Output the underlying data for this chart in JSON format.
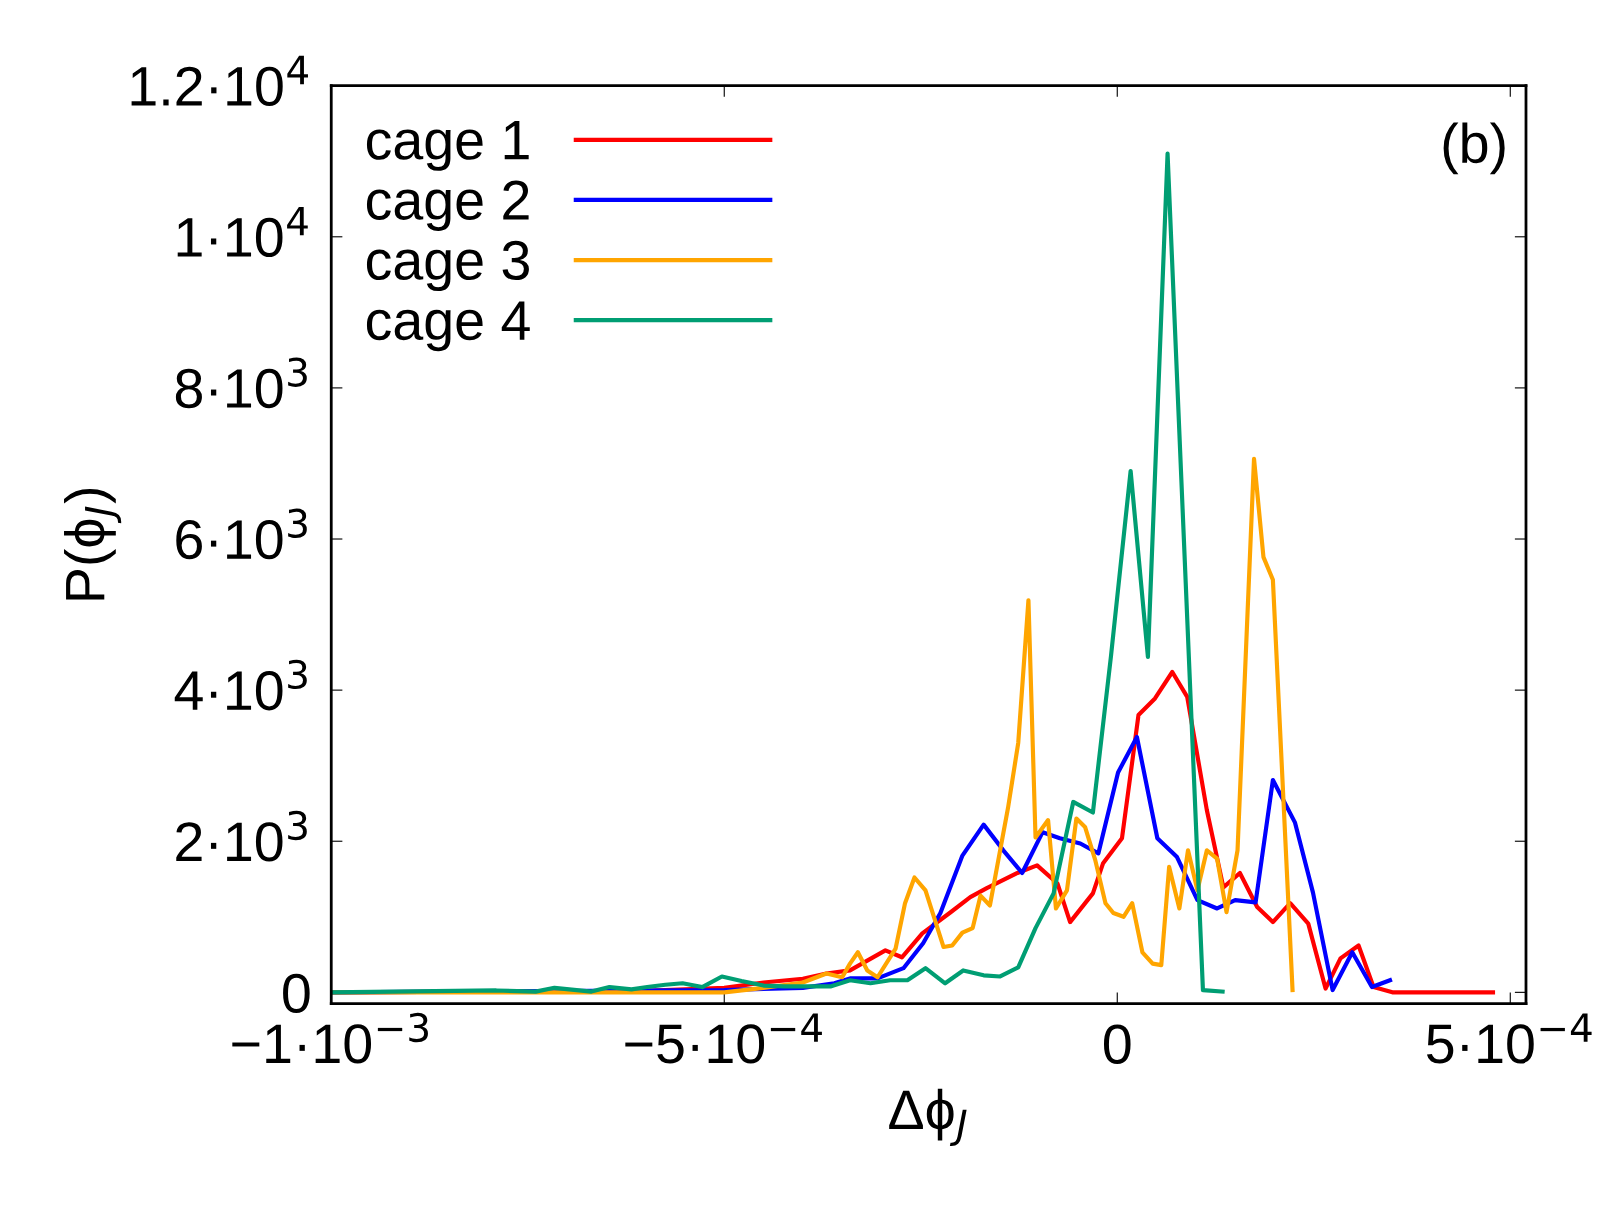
{
  "chart_data": {
    "type": "line",
    "xlabel": "Δϕ$_{J}$",
    "ylabel": "P(ϕ$_{J}$)",
    "annotations": [
      "(b)"
    ],
    "xlim": [
      -0.001,
      0.00052
    ],
    "ylim": [
      -150,
      12000
    ],
    "xticks": [
      {
        "value": -0.001,
        "label": "−1·10$^{−3}$"
      },
      {
        "value": -0.0005,
        "label": "−5·10$^{−4}$"
      },
      0,
      {
        "value": 0.0005,
        "label": "5·10$^{−4}$"
      }
    ],
    "yticks": [
      0,
      {
        "value": 2000,
        "label": "2·10$^{3}$"
      },
      {
        "value": 4000,
        "label": "4·10$^{3}$"
      },
      {
        "value": 6000,
        "label": "6·10$^{3}$"
      },
      {
        "value": 8000,
        "label": "8·10$^{3}$"
      },
      {
        "value": 10000,
        "label": "1·10$^{4}$"
      },
      {
        "value": 12000,
        "label": "1.2·10$^{4}$"
      }
    ],
    "grid": false,
    "legend": "top left",
    "marker": "none",
    "line_style": "solid",
    "series": [
      {
        "name": "cage 1",
        "color": "#ff0000",
        "x": [
          -0.001,
          -0.0006,
          -0.0005,
          -0.00045,
          -0.0004,
          -0.00037,
          -0.00034,
          -0.000295,
          -0.000274,
          -0.000248,
          -0.000212,
          -0.000187,
          -0.000166,
          -0.000127,
          -0.000102,
          -7.6e-05,
          -6e-05,
          -3.1e-05,
          -1.8e-05,
          6e-06,
          2.7e-05,
          4.8e-05,
          7e-05,
          8.9e-05,
          0.000114,
          0.000135,
          0.000156,
          0.000178,
          0.000198,
          0.00022,
          0.000243,
          0.000265,
          0.000284,
          0.000307,
          0.000326,
          0.00035,
          0.000478
        ],
        "values": [
          0,
          20,
          60,
          130,
          180,
          250,
          290,
          556,
          464,
          780,
          1060,
          1260,
          1380,
          1580,
          1680,
          1440,
          930,
          1310,
          1710,
          2040,
          3670,
          3890,
          4240,
          3910,
          2410,
          1390,
          1580,
          1130,
          930,
          1180,
          910,
          50,
          450,
          620,
          70,
          0,
          0
        ]
      },
      {
        "name": "cage 2",
        "color": "#0000ff",
        "x": [
          -0.001,
          -0.0005,
          -0.0004,
          -0.00036,
          -0.00034,
          -0.000305,
          -0.000272,
          -0.000247,
          -0.000225,
          -0.000197,
          -0.00017,
          -0.000145,
          -0.000121,
          -9.5e-05,
          -7.3e-05,
          -4.7e-05,
          -2.4e-05,
          1e-06,
          2.5e-05,
          5.1e-05,
          7.6e-05,
          0.000102,
          0.000127,
          0.00015,
          0.000176,
          0.000198,
          0.000226,
          0.000249,
          0.000274,
          0.000299,
          0.000324,
          0.000347
        ],
        "values": [
          0,
          30,
          60,
          120,
          185,
          185,
          320,
          650,
          1050,
          1810,
          2220,
          1880,
          1580,
          2120,
          2040,
          1970,
          1840,
          2910,
          3380,
          2040,
          1790,
          1220,
          1110,
          1220,
          1190,
          2810,
          2250,
          1320,
          30,
          530,
          70,
          160
        ]
      },
      {
        "name": "cage 3",
        "color": "#ffa500",
        "x": [
          -0.001,
          -0.0005,
          -0.00045,
          -0.0004,
          -0.00037,
          -0.00035,
          -0.00034,
          -0.00033,
          -0.000318,
          -0.000305,
          -0.000282,
          -0.00027,
          -0.000258,
          -0.000244,
          -0.000221,
          -0.00021,
          -0.000197,
          -0.000184,
          -0.000174,
          -0.000162,
          -0.000139,
          -0.000126,
          -0.000113,
          -0.000104,
          -8.8e-05,
          -7.8e-05,
          -6.4e-05,
          -5.2e-05,
          -4.1e-05,
          -2.8e-05,
          -1.5e-05,
          -5e-06,
          8e-06,
          1.9e-05,
          3.2e-05,
          4.5e-05,
          5.6e-05,
          6.6e-05,
          7.9e-05,
          9e-05,
          0.000102,
          0.000114,
          0.000127,
          0.000139,
          0.000153,
          0.000174,
          0.000186,
          0.000198,
          0.000223
        ],
        "values": [
          0,
          0,
          60,
          130,
          250,
          200,
          380,
          530,
          290,
          200,
          580,
          1180,
          1520,
          1350,
          600,
          620,
          790,
          850,
          1280,
          1150,
          2440,
          3300,
          5190,
          2050,
          2280,
          1110,
          1350,
          2300,
          2190,
          1750,
          1180,
          1050,
          1000,
          1180,
          530,
          380,
          360,
          1660,
          1110,
          1880,
          1350,
          1880,
          1770,
          1060,
          1880,
          7060,
          5760,
          5460,
          30
        ]
      },
      {
        "name": "cage 4",
        "color": "#009e73",
        "x": [
          -0.001,
          -0.00079,
          -0.00074,
          -0.000716,
          -0.000669,
          -0.000646,
          -0.000618,
          -0.000598,
          -0.000575,
          -0.000553,
          -0.000528,
          -0.000503,
          -0.000478,
          -0.00045,
          -0.000424,
          -0.000364,
          -0.00034,
          -0.000314,
          -0.000289,
          -0.000267,
          -0.000244,
          -0.000219,
          -0.000196,
          -0.00017,
          -0.000149,
          -0.000126,
          -0.000104,
          -8.1e-05,
          -5.6e-05,
          -3.1e-05,
          -8e-06,
          1.7e-05,
          3.9e-05,
          6.4e-05,
          0.000109,
          0.000134
        ],
        "values": [
          0,
          25,
          10,
          60,
          10,
          70,
          40,
          70,
          100,
          120,
          70,
          210,
          150,
          90,
          80,
          80,
          160,
          120,
          160,
          160,
          320,
          120,
          290,
          225,
          210,
          330,
          850,
          1310,
          2520,
          2380,
          4450,
          6900,
          4440,
          11100,
          30,
          10
        ]
      }
    ]
  }
}
